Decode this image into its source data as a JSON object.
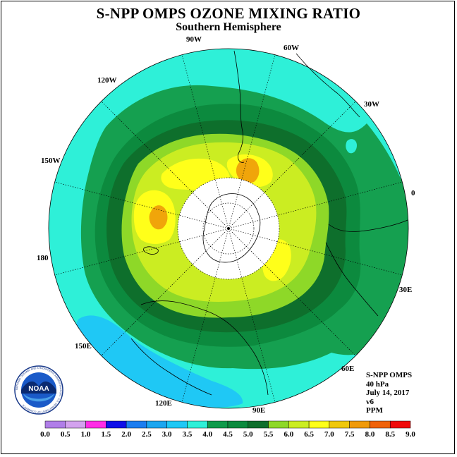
{
  "title": "S-NPP OMPS OZONE MIXING RATIO",
  "subtitle": "Southern Hemisphere",
  "info": {
    "instrument": "S-NPP OMPS",
    "level": "40 hPa",
    "date": "July 14, 2017",
    "version": "v6",
    "units": "PPM"
  },
  "longitude_labels": [
    {
      "text": "0"
    },
    {
      "text": "30W"
    },
    {
      "text": "60W"
    },
    {
      "text": "90W"
    },
    {
      "text": "120W"
    },
    {
      "text": "150W"
    },
    {
      "text": "180"
    },
    {
      "text": "150E"
    },
    {
      "text": "120E"
    },
    {
      "text": "90E"
    },
    {
      "text": "60E"
    },
    {
      "text": "30E"
    }
  ],
  "colorbar": {
    "ticks": [
      "0.0",
      "0.5",
      "1.0",
      "1.5",
      "2.0",
      "2.5",
      "3.0",
      "3.5",
      "4.0",
      "4.5",
      "5.0",
      "5.5",
      "6.0",
      "6.5",
      "7.0",
      "7.5",
      "8.0",
      "8.5",
      "9.0"
    ],
    "colors": [
      "#b07ee8",
      "#d3a2ee",
      "#ff2ce6",
      "#1010e8",
      "#1c7df0",
      "#1ca6f0",
      "#1fc8f5",
      "#2ef0d8",
      "#0f9a4a",
      "#0c8a3e",
      "#0f6e2c",
      "#8ed828",
      "#cbed22",
      "#ffff1a",
      "#f0c80c",
      "#f09a0a",
      "#f0620a",
      "#f00a0a",
      "#8a5a2a"
    ]
  },
  "logo": {
    "text": "NOAA",
    "ring_text": "NATIONAL OCEANIC AND ATMOSPHERIC ADMINISTRATION · U.S. DEPARTMENT OF COMMERCE"
  },
  "palette": {
    "cyan": "#2ef0d8",
    "mid_green": "#15a050",
    "dark_green": "#0e6f2c",
    "dark_mid_green": "#0c8a3e",
    "lime": "#8ed828",
    "yellow_green": "#cbed22",
    "yellow": "#ffff1a",
    "orange": "#f0a50a",
    "light_blue": "#1fc8f5",
    "polar_night": "#ffffff"
  }
}
